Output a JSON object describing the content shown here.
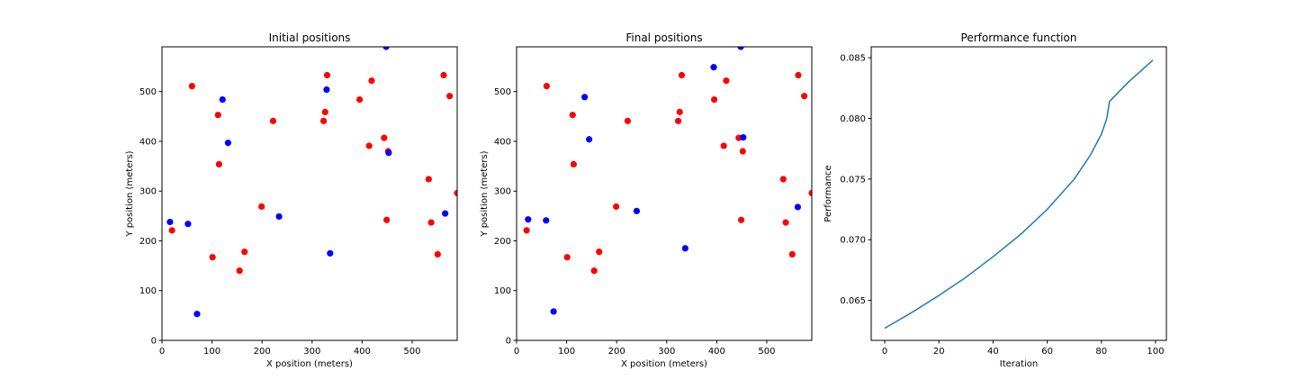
{
  "chart_data": [
    {
      "type": "scatter",
      "title": "Initial positions",
      "xlabel": "X position (meters)",
      "ylabel": "Y position (meters)",
      "xlim": [
        0,
        590
      ],
      "ylim": [
        0,
        590
      ],
      "xticks": [
        0,
        100,
        200,
        300,
        400,
        500
      ],
      "yticks": [
        0,
        100,
        200,
        300,
        400,
        500
      ],
      "grid": false,
      "series": [
        {
          "color": "#ff0000",
          "points": [
            [
              20,
              221
            ],
            [
              60,
              511
            ],
            [
              101,
              167
            ],
            [
              112,
              453
            ],
            [
              114,
              354
            ],
            [
              155,
              140
            ],
            [
              165,
              178
            ],
            [
              199,
              269
            ],
            [
              222,
              441
            ],
            [
              323,
              441
            ],
            [
              326,
              459
            ],
            [
              330,
              533
            ],
            [
              395,
              484
            ],
            [
              414,
              391
            ],
            [
              419,
              522
            ],
            [
              444,
              407
            ],
            [
              449,
              242
            ],
            [
              452,
              380
            ],
            [
              533,
              324
            ],
            [
              538,
              237
            ],
            [
              551,
              173
            ],
            [
              563,
              533
            ],
            [
              575,
              491
            ],
            [
              590,
              296
            ]
          ]
        },
        {
          "color": "#0000ff",
          "points": [
            [
              16,
              238
            ],
            [
              52,
              234
            ],
            [
              70,
              53
            ],
            [
              121,
              484
            ],
            [
              132,
              397
            ],
            [
              234,
              249
            ],
            [
              329,
              504
            ],
            [
              336,
              175
            ],
            [
              448,
              590
            ],
            [
              453,
              377
            ],
            [
              566,
              255
            ]
          ]
        }
      ]
    },
    {
      "type": "scatter",
      "title": "Final positions",
      "xlabel": "X position (meters)",
      "ylabel": "Y position (meters)",
      "xlim": [
        0,
        590
      ],
      "ylim": [
        0,
        590
      ],
      "xticks": [
        0,
        100,
        200,
        300,
        400,
        500
      ],
      "yticks": [
        0,
        100,
        200,
        300,
        400,
        500
      ],
      "grid": false,
      "series": [
        {
          "color": "#ff0000",
          "points": [
            [
              20,
              221
            ],
            [
              60,
              511
            ],
            [
              101,
              167
            ],
            [
              112,
              453
            ],
            [
              114,
              354
            ],
            [
              155,
              140
            ],
            [
              165,
              178
            ],
            [
              199,
              269
            ],
            [
              222,
              441
            ],
            [
              323,
              441
            ],
            [
              326,
              459
            ],
            [
              330,
              533
            ],
            [
              395,
              484
            ],
            [
              414,
              391
            ],
            [
              419,
              522
            ],
            [
              444,
              407
            ],
            [
              449,
              242
            ],
            [
              452,
              380
            ],
            [
              533,
              324
            ],
            [
              538,
              237
            ],
            [
              551,
              173
            ],
            [
              563,
              533
            ],
            [
              575,
              491
            ],
            [
              590,
              296
            ]
          ]
        },
        {
          "color": "#0000ff",
          "points": [
            [
              23,
              243
            ],
            [
              59,
              241
            ],
            [
              74,
              58
            ],
            [
              136,
              489
            ],
            [
              145,
              404
            ],
            [
              240,
              260
            ],
            [
              337,
              185
            ],
            [
              394,
              549
            ],
            [
              448,
              590
            ],
            [
              453,
              408
            ],
            [
              562,
              268
            ]
          ]
        }
      ]
    },
    {
      "type": "line",
      "title": "Performance function",
      "xlabel": "Iteration",
      "ylabel": "Performance",
      "xlim": [
        -5,
        104
      ],
      "ylim": [
        0.0617,
        0.0859
      ],
      "xticks": [
        0,
        20,
        40,
        60,
        80,
        100
      ],
      "yticks": [
        0.065,
        0.07,
        0.075,
        0.08,
        0.085
      ],
      "ytick_labels": [
        "0.065",
        "0.070",
        "0.075",
        "0.080",
        "0.085"
      ],
      "grid": false,
      "series": [
        {
          "color": "#1f77b4",
          "x": [
            0,
            10,
            20,
            30,
            40,
            50,
            60,
            70,
            76,
            80,
            82,
            83,
            90,
            99
          ],
          "y": [
            0.0627,
            0.064,
            0.0654,
            0.0669,
            0.0686,
            0.0704,
            0.0725,
            0.075,
            0.077,
            0.0787,
            0.08,
            0.0814,
            0.083,
            0.0848
          ]
        }
      ]
    }
  ]
}
